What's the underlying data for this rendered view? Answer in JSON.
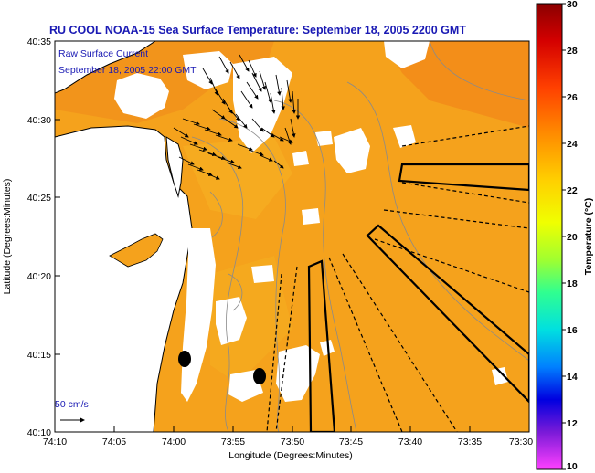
{
  "title": "RU COOL  NOAA-15  Sea Surface Temperature:  September 18, 2005 2200 GMT",
  "overlay": {
    "line1": "Raw Surface Current",
    "line2": "September 18, 2005 22:00 GMT"
  },
  "axes": {
    "xlabel": "Longitude (Degrees:Minutes)",
    "ylabel": "Latitude (Degrees:Minutes)",
    "x_ticks": [
      "74:10",
      "74:05",
      "74:00",
      "73:55",
      "73:50",
      "73:45",
      "73:40",
      "73:35",
      "73:30"
    ],
    "y_ticks": [
      "40:35",
      "40:30",
      "40:25",
      "40:20",
      "40:15",
      "40:10"
    ]
  },
  "scale": {
    "label": "50 cm/s"
  },
  "colorbar": {
    "label": "Temperature (°C)",
    "ticks": [
      "30",
      "28",
      "26",
      "24",
      "22",
      "20",
      "18",
      "16",
      "14",
      "12",
      "10"
    ],
    "range": [
      10,
      30
    ]
  },
  "colors": {
    "sst": "#f5a21c",
    "land": "#ffffff",
    "title": "#1a1ab4"
  }
}
